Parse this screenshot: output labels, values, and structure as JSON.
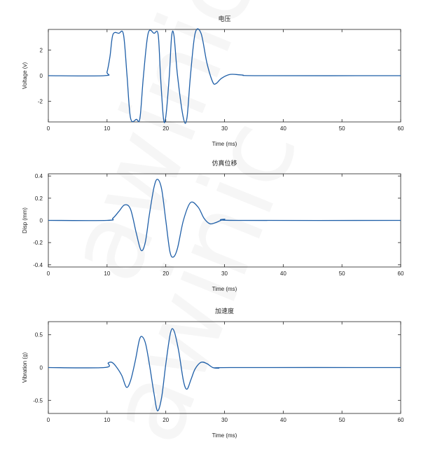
{
  "colors": {
    "line": "#1f5fa8",
    "axis": "#222222"
  },
  "watermark": {
    "text": "awinic"
  },
  "chart_data": [
    {
      "type": "line",
      "title": "电压",
      "xlabel": "Time (ms)",
      "ylabel": "Voltage (v)",
      "xlim": [
        0,
        60
      ],
      "ylim": [
        -3.6,
        3.6
      ],
      "xticks": [
        0,
        10,
        20,
        30,
        40,
        50,
        60
      ],
      "yticks": [
        2,
        0,
        -2
      ],
      "ytick_labels": [
        "2",
        "0",
        "-2"
      ],
      "grid": false,
      "series": [
        {
          "x": [
            0,
            9.5,
            10.0,
            10.5,
            11.0,
            12.0,
            12.8,
            13.4,
            14.0,
            15.0,
            15.6,
            16.2,
            17.0,
            18.0,
            18.7,
            19.1,
            19.6,
            20.0,
            20.6,
            21.0,
            21.4,
            22.0,
            23.0,
            23.6,
            24.2,
            25.0,
            26.0,
            27.0,
            28.0,
            28.6,
            29.5,
            31.0,
            33.0,
            36.0,
            60.0
          ],
          "y": [
            0,
            0,
            0.3,
            1.5,
            3.2,
            3.3,
            3.2,
            0,
            -3.3,
            -3.4,
            -3.3,
            0,
            3.3,
            3.3,
            3.2,
            0,
            -3.3,
            -3.2,
            0,
            3.1,
            3.1,
            0,
            -3.3,
            -3.3,
            0,
            3.3,
            3.3,
            1.0,
            -0.5,
            -0.6,
            -0.2,
            0.1,
            0.05,
            0,
            0
          ]
        }
      ]
    },
    {
      "type": "line",
      "title": "仿真位移",
      "xlabel": "Time (ms)",
      "ylabel": "Disp (mm)",
      "xlim": [
        0,
        60
      ],
      "ylim": [
        -0.42,
        0.42
      ],
      "xticks": [
        0,
        10,
        20,
        30,
        40,
        50,
        60
      ],
      "yticks": [
        0.4,
        0.2,
        0,
        -0.2,
        -0.4
      ],
      "ytick_labels": [
        "0.4",
        "0.2",
        "0",
        "-0.2",
        "-0.4"
      ],
      "grid": false,
      "series": [
        {
          "x": [
            0,
            10,
            11.0,
            12.0,
            13.0,
            14.0,
            15.0,
            15.8,
            16.5,
            17.2,
            18.0,
            18.6,
            19.3,
            20.0,
            20.7,
            21.3,
            22.0,
            23.0,
            24.2,
            25.5,
            26.5,
            27.5,
            28.5,
            30.0,
            32.0,
            60.0
          ],
          "y": [
            0,
            0,
            0.02,
            0.08,
            0.14,
            0.1,
            -0.12,
            -0.27,
            -0.2,
            0.05,
            0.3,
            0.37,
            0.28,
            0.0,
            -0.28,
            -0.33,
            -0.25,
            0.0,
            0.16,
            0.12,
            0.02,
            -0.03,
            -0.02,
            0.01,
            0.0,
            0.0
          ]
        }
      ]
    },
    {
      "type": "line",
      "title": "加速度",
      "xlabel": "Time (ms)",
      "ylabel": "Vibration (g)",
      "xlim": [
        0,
        60
      ],
      "ylim": [
        -0.7,
        0.7
      ],
      "xticks": [
        0,
        10,
        20,
        30,
        40,
        50,
        60
      ],
      "yticks": [
        0.5,
        0,
        -0.5
      ],
      "ytick_labels": [
        "0.5",
        "0",
        "-0.5"
      ],
      "grid": false,
      "series": [
        {
          "x": [
            0,
            9.5,
            10.2,
            10.8,
            11.5,
            12.5,
            13.3,
            14.0,
            14.8,
            15.5,
            16.0,
            16.6,
            17.3,
            18.0,
            18.6,
            19.3,
            20.0,
            20.8,
            21.4,
            22.2,
            23.0,
            23.6,
            24.3,
            25.0,
            26.0,
            27.0,
            28.0,
            29.0,
            31.0,
            60.0
          ],
          "y": [
            0,
            0,
            0.07,
            0.08,
            0.02,
            -0.12,
            -0.3,
            -0.2,
            0.1,
            0.42,
            0.47,
            0.35,
            0.0,
            -0.4,
            -0.66,
            -0.45,
            0.05,
            0.53,
            0.56,
            0.25,
            -0.2,
            -0.33,
            -0.18,
            -0.02,
            0.08,
            0.06,
            0.0,
            -0.01,
            0.0,
            0.0
          ]
        }
      ]
    }
  ]
}
